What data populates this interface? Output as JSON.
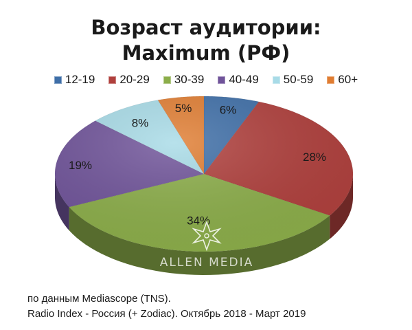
{
  "chart_data": {
    "type": "pie",
    "title_line1": "Возраст аудитории:",
    "title_line2": "Maximum (РФ)",
    "categories": [
      "12-19",
      "20-29",
      "30-39",
      "40-49",
      "50-59",
      "60+"
    ],
    "values": [
      6,
      28,
      34,
      19,
      8,
      5
    ],
    "labels": [
      "6%",
      "28%",
      "34%",
      "19%",
      "8%",
      "5%"
    ],
    "colors": [
      "#3f6fa8",
      "#b0403d",
      "#8cae4a",
      "#70549a",
      "#a8dbe7",
      "#e07d32"
    ],
    "legend_position": "top"
  },
  "watermark": {
    "text": "ALLEN MEDIA"
  },
  "footer": {
    "line1": "по данным Mediascope (TNS).",
    "line2": "Radio Index - Россия (+ Zodiac). Октябрь 2018 - Март 2019"
  }
}
